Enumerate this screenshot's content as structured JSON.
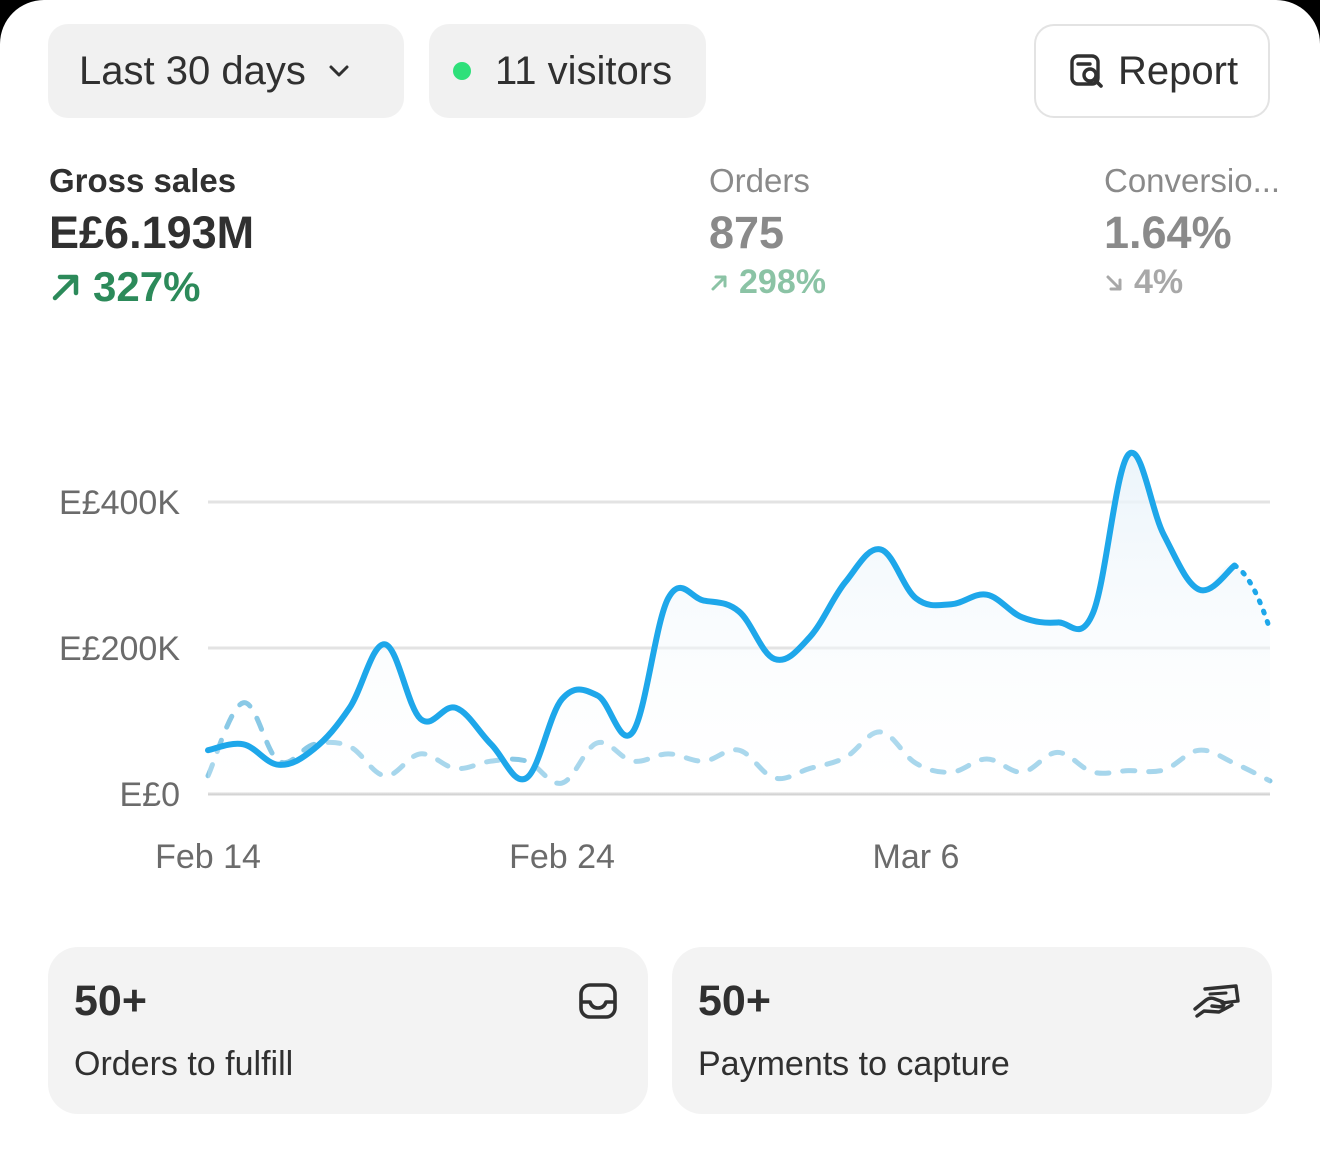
{
  "toolbar": {
    "date_range": "Last 30 days",
    "visitors": "11 visitors",
    "report_label": "Report",
    "live_dot_color": "#2ee07a"
  },
  "metrics": [
    {
      "label": "Gross sales",
      "value": "E£6.193M",
      "delta": "327%",
      "direction": "up"
    },
    {
      "label": "Orders",
      "value": "875",
      "delta": "298%",
      "direction": "up"
    },
    {
      "label": "Conversio...",
      "value": "1.64%",
      "delta": "4%",
      "direction": "down"
    }
  ],
  "chart_data": {
    "type": "line",
    "title": "",
    "ylabel": "",
    "xlabel": "",
    "ylim": [
      0,
      400000
    ],
    "y_ticks": [
      "E£0",
      "E£200K",
      "E£400K"
    ],
    "x_ticks": [
      "Feb 14",
      "Feb 24",
      "Mar 6"
    ],
    "x": [
      "Feb 14",
      "Feb 15",
      "Feb 16",
      "Feb 17",
      "Feb 18",
      "Feb 19",
      "Feb 20",
      "Feb 21",
      "Feb 22",
      "Feb 23",
      "Feb 24",
      "Feb 25",
      "Feb 26",
      "Feb 27",
      "Feb 28",
      "Mar 1",
      "Mar 2",
      "Mar 3",
      "Mar 4",
      "Mar 5",
      "Mar 6",
      "Mar 7",
      "Mar 8",
      "Mar 9",
      "Mar 10",
      "Mar 11",
      "Mar 12",
      "Mar 13",
      "Mar 14",
      "Mar 15",
      "Mar 16"
    ],
    "series": [
      {
        "style": "solid",
        "color": "#1ea7ea",
        "values": [
          60000,
          68000,
          40000,
          62000,
          118000,
          205000,
          103000,
          118000,
          68000,
          22000,
          130000,
          135000,
          85000,
          268000,
          265000,
          250000,
          185000,
          215000,
          290000,
          335000,
          268000,
          260000,
          273000,
          242000,
          235000,
          248000,
          465000,
          355000,
          280000,
          313000,
          225000
        ],
        "projected_last_point": true
      },
      {
        "style": "dashed",
        "color": "#8ac9e6",
        "values": [
          25000,
          125000,
          45000,
          68000,
          65000,
          25000,
          55000,
          35000,
          45000,
          45000,
          15000,
          70000,
          45000,
          55000,
          45000,
          60000,
          22000,
          35000,
          50000,
          85000,
          42000,
          30000,
          48000,
          30000,
          57000,
          30000,
          32000,
          33000,
          60000,
          42000,
          18000
        ]
      }
    ],
    "grid": true
  },
  "tiles": [
    {
      "count": "50+",
      "label": "Orders to fulfill",
      "icon": "inbox-icon"
    },
    {
      "count": "50+",
      "label": "Payments to capture",
      "icon": "cash-hand-icon"
    }
  ]
}
